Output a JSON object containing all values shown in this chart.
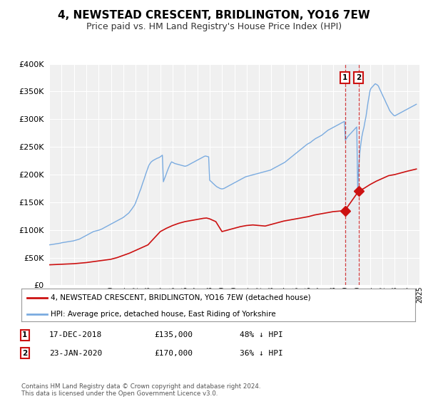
{
  "title": "4, NEWSTEAD CRESCENT, BRIDLINGTON, YO16 7EW",
  "subtitle": "Price paid vs. HM Land Registry's House Price Index (HPI)",
  "title_fontsize": 11,
  "subtitle_fontsize": 9,
  "background_color": "#ffffff",
  "plot_bg_color": "#f0f0f0",
  "grid_color": "#ffffff",
  "hpi_color": "#7aabe0",
  "price_color": "#cc1111",
  "sale1_date_num": 2018.96,
  "sale2_date_num": 2020.07,
  "sale1_price": 135000,
  "sale2_price": 170000,
  "ylim_max": 400000,
  "ylim_min": 0,
  "xlim_min": 1995,
  "xlim_max": 2025,
  "legend_label_price": "4, NEWSTEAD CRESCENT, BRIDLINGTON, YO16 7EW (detached house)",
  "legend_label_hpi": "HPI: Average price, detached house, East Riding of Yorkshire",
  "table_row1": [
    "1",
    "17-DEC-2018",
    "£135,000",
    "48% ↓ HPI"
  ],
  "table_row2": [
    "2",
    "23-JAN-2020",
    "£170,000",
    "36% ↓ HPI"
  ],
  "footer": "Contains HM Land Registry data © Crown copyright and database right 2024.\nThis data is licensed under the Open Government Licence v3.0.",
  "hpi_x": [
    1995.0,
    1995.08,
    1995.17,
    1995.25,
    1995.33,
    1995.42,
    1995.5,
    1995.58,
    1995.67,
    1995.75,
    1995.83,
    1995.92,
    1996.0,
    1996.08,
    1996.17,
    1996.25,
    1996.33,
    1996.42,
    1996.5,
    1996.58,
    1996.67,
    1996.75,
    1996.83,
    1996.92,
    1997.0,
    1997.08,
    1997.17,
    1997.25,
    1997.33,
    1997.42,
    1997.5,
    1997.58,
    1997.67,
    1997.75,
    1997.83,
    1997.92,
    1998.0,
    1998.08,
    1998.17,
    1998.25,
    1998.33,
    1998.42,
    1998.5,
    1998.58,
    1998.67,
    1998.75,
    1998.83,
    1998.92,
    1999.0,
    1999.08,
    1999.17,
    1999.25,
    1999.33,
    1999.42,
    1999.5,
    1999.58,
    1999.67,
    1999.75,
    1999.83,
    1999.92,
    2000.0,
    2000.08,
    2000.17,
    2000.25,
    2000.33,
    2000.42,
    2000.5,
    2000.58,
    2000.67,
    2000.75,
    2000.83,
    2000.92,
    2001.0,
    2001.08,
    2001.17,
    2001.25,
    2001.33,
    2001.42,
    2001.5,
    2001.58,
    2001.67,
    2001.75,
    2001.83,
    2001.92,
    2002.0,
    2002.08,
    2002.17,
    2002.25,
    2002.33,
    2002.42,
    2002.5,
    2002.58,
    2002.67,
    2002.75,
    2002.83,
    2002.92,
    2003.0,
    2003.08,
    2003.17,
    2003.25,
    2003.33,
    2003.42,
    2003.5,
    2003.58,
    2003.67,
    2003.75,
    2003.83,
    2003.92,
    2004.0,
    2004.08,
    2004.17,
    2004.25,
    2004.33,
    2004.42,
    2004.5,
    2004.58,
    2004.67,
    2004.75,
    2004.83,
    2004.92,
    2005.0,
    2005.08,
    2005.17,
    2005.25,
    2005.33,
    2005.42,
    2005.5,
    2005.58,
    2005.67,
    2005.75,
    2005.83,
    2005.92,
    2006.0,
    2006.08,
    2006.17,
    2006.25,
    2006.33,
    2006.42,
    2006.5,
    2006.58,
    2006.67,
    2006.75,
    2006.83,
    2006.92,
    2007.0,
    2007.08,
    2007.17,
    2007.25,
    2007.33,
    2007.42,
    2007.5,
    2007.58,
    2007.67,
    2007.75,
    2007.83,
    2007.92,
    2008.0,
    2008.08,
    2008.17,
    2008.25,
    2008.33,
    2008.42,
    2008.5,
    2008.58,
    2008.67,
    2008.75,
    2008.83,
    2008.92,
    2009.0,
    2009.08,
    2009.17,
    2009.25,
    2009.33,
    2009.42,
    2009.5,
    2009.58,
    2009.67,
    2009.75,
    2009.83,
    2009.92,
    2010.0,
    2010.08,
    2010.17,
    2010.25,
    2010.33,
    2010.42,
    2010.5,
    2010.58,
    2010.67,
    2010.75,
    2010.83,
    2010.92,
    2011.0,
    2011.08,
    2011.17,
    2011.25,
    2011.33,
    2011.42,
    2011.5,
    2011.58,
    2011.67,
    2011.75,
    2011.83,
    2011.92,
    2012.0,
    2012.08,
    2012.17,
    2012.25,
    2012.33,
    2012.42,
    2012.5,
    2012.58,
    2012.67,
    2012.75,
    2012.83,
    2012.92,
    2013.0,
    2013.08,
    2013.17,
    2013.25,
    2013.33,
    2013.42,
    2013.5,
    2013.58,
    2013.67,
    2013.75,
    2013.83,
    2013.92,
    2014.0,
    2014.08,
    2014.17,
    2014.25,
    2014.33,
    2014.42,
    2014.5,
    2014.58,
    2014.67,
    2014.75,
    2014.83,
    2014.92,
    2015.0,
    2015.08,
    2015.17,
    2015.25,
    2015.33,
    2015.42,
    2015.5,
    2015.58,
    2015.67,
    2015.75,
    2015.83,
    2015.92,
    2016.0,
    2016.08,
    2016.17,
    2016.25,
    2016.33,
    2016.42,
    2016.5,
    2016.58,
    2016.67,
    2016.75,
    2016.83,
    2016.92,
    2017.0,
    2017.08,
    2017.17,
    2017.25,
    2017.33,
    2017.42,
    2017.5,
    2017.58,
    2017.67,
    2017.75,
    2017.83,
    2017.92,
    2018.0,
    2018.08,
    2018.17,
    2018.25,
    2018.33,
    2018.42,
    2018.5,
    2018.58,
    2018.67,
    2018.75,
    2018.83,
    2018.92,
    2019.0,
    2019.08,
    2019.17,
    2019.25,
    2019.33,
    2019.42,
    2019.5,
    2019.58,
    2019.67,
    2019.75,
    2019.83,
    2019.92,
    2020.0,
    2020.08,
    2020.17,
    2020.25,
    2020.33,
    2020.42,
    2020.5,
    2020.58,
    2020.67,
    2020.75,
    2020.83,
    2020.92,
    2021.0,
    2021.08,
    2021.17,
    2021.25,
    2021.33,
    2021.42,
    2021.5,
    2021.58,
    2021.67,
    2021.75,
    2021.83,
    2021.92,
    2022.0,
    2022.08,
    2022.17,
    2022.25,
    2022.33,
    2022.42,
    2022.5,
    2022.58,
    2022.67,
    2022.75,
    2022.83,
    2022.92,
    2023.0,
    2023.08,
    2023.17,
    2023.25,
    2023.33,
    2023.42,
    2023.5,
    2023.58,
    2023.67,
    2023.75,
    2023.83,
    2023.92,
    2024.0,
    2024.08,
    2024.17,
    2024.25,
    2024.33,
    2024.42,
    2024.5,
    2024.58,
    2024.67,
    2024.75
  ],
  "hpi_y": [
    73000,
    73200,
    73500,
    73800,
    74100,
    74400,
    74700,
    75000,
    75300,
    75600,
    75900,
    76200,
    76800,
    77100,
    77400,
    77700,
    78000,
    78300,
    78600,
    78900,
    79200,
    79500,
    79800,
    80000,
    80500,
    81000,
    81500,
    82000,
    82500,
    83200,
    84000,
    85000,
    86000,
    87000,
    88000,
    89000,
    90000,
    91000,
    92000,
    93000,
    94000,
    95000,
    96000,
    97000,
    97500,
    98000,
    98500,
    99000,
    99500,
    100000,
    100800,
    101500,
    102500,
    103500,
    104500,
    105500,
    106500,
    107500,
    108500,
    109500,
    110500,
    111500,
    112500,
    113500,
    114500,
    115500,
    116500,
    117500,
    118500,
    119500,
    120500,
    121500,
    122500,
    124000,
    125500,
    127000,
    128500,
    130000,
    132000,
    134500,
    137000,
    139500,
    142000,
    145000,
    149000,
    154000,
    159000,
    164000,
    169000,
    174000,
    179500,
    185000,
    190500,
    196000,
    201500,
    207000,
    212000,
    217000,
    220000,
    222500,
    224000,
    225500,
    226500,
    227500,
    228500,
    229500,
    230000,
    231000,
    232000,
    233500,
    235000,
    187000,
    192000,
    197000,
    202000,
    207000,
    212000,
    216000,
    220000,
    223000,
    222000,
    221000,
    220000,
    219500,
    219000,
    218500,
    218000,
    217500,
    217000,
    216500,
    216000,
    215500,
    215000,
    215500,
    216000,
    217000,
    218000,
    219000,
    220000,
    221000,
    222000,
    223000,
    224000,
    225000,
    226000,
    227000,
    228000,
    229000,
    230000,
    231000,
    232000,
    233000,
    233500,
    233000,
    232500,
    232000,
    190000,
    188000,
    186500,
    184500,
    183000,
    181000,
    179500,
    178000,
    177000,
    176000,
    175000,
    174500,
    174000,
    174500,
    175000,
    176000,
    177000,
    178000,
    179000,
    180000,
    181000,
    182000,
    183000,
    184000,
    185000,
    186000,
    187000,
    188000,
    189000,
    190000,
    191000,
    192000,
    193000,
    194000,
    195000,
    196000,
    196500,
    197000,
    197500,
    198000,
    198500,
    199000,
    199500,
    200000,
    200500,
    201000,
    201500,
    202000,
    202500,
    203000,
    203500,
    204000,
    204500,
    205000,
    205500,
    206000,
    206500,
    207000,
    207500,
    208000,
    209000,
    210000,
    211000,
    212000,
    213000,
    214000,
    215000,
    216000,
    217000,
    218000,
    219000,
    220000,
    221000,
    222000,
    223500,
    225000,
    226500,
    228000,
    229500,
    231000,
    232500,
    234000,
    235500,
    237000,
    238500,
    240000,
    241500,
    243000,
    244500,
    246000,
    247500,
    249000,
    250500,
    252000,
    253500,
    255000,
    256000,
    257000,
    258000,
    259500,
    261000,
    262500,
    264000,
    265000,
    266000,
    267000,
    268000,
    269000,
    270000,
    271000,
    272500,
    274000,
    275500,
    277000,
    278500,
    280000,
    281000,
    282000,
    283000,
    284000,
    285000,
    286000,
    287000,
    288000,
    289000,
    290000,
    291000,
    292000,
    293000,
    294000,
    295000,
    296000,
    262000,
    265000,
    268000,
    270000,
    272000,
    274000,
    276000,
    278000,
    280000,
    282000,
    284000,
    286000,
    170000,
    215000,
    240000,
    255000,
    268000,
    278000,
    285000,
    295000,
    305000,
    318000,
    330000,
    342000,
    352000,
    356000,
    358000,
    360000,
    362000,
    364000,
    363000,
    362000,
    360000,
    356000,
    352000,
    348000,
    344000,
    340000,
    336000,
    332000,
    328000,
    324000,
    320000,
    316000,
    313000,
    311000,
    309000,
    307000,
    306000,
    307000,
    308000,
    309000,
    310000,
    311000,
    312000,
    313000,
    314000,
    315000,
    316000,
    317000,
    318000,
    319000,
    320000,
    321000,
    322000,
    323000,
    324000,
    325000,
    326000,
    327000,
    328000,
    329000
  ],
  "price_x": [
    1995.0,
    1995.5,
    1996.0,
    1996.5,
    1997.0,
    1997.5,
    1998.0,
    1998.5,
    1999.0,
    1999.5,
    2000.0,
    2000.5,
    2001.0,
    2001.5,
    2002.0,
    2002.5,
    2003.0,
    2003.5,
    2004.0,
    2004.5,
    2005.0,
    2005.5,
    2006.0,
    2006.5,
    2007.0,
    2007.5,
    2007.75,
    2008.0,
    2008.5,
    2009.0,
    2009.5,
    2010.0,
    2010.5,
    2011.0,
    2011.5,
    2012.0,
    2012.5,
    2013.0,
    2013.5,
    2014.0,
    2014.5,
    2015.0,
    2015.5,
    2016.0,
    2016.5,
    2017.0,
    2017.5,
    2018.0,
    2018.5,
    2018.96,
    2018.96,
    2020.07,
    2020.5,
    2021.0,
    2021.5,
    2022.0,
    2022.5,
    2023.0,
    2023.5,
    2024.0,
    2024.75
  ],
  "price_y": [
    37000,
    37500,
    38000,
    38500,
    39000,
    40000,
    41000,
    42500,
    44000,
    45500,
    47000,
    50000,
    54000,
    58000,
    63000,
    68000,
    73000,
    85000,
    97000,
    103000,
    108000,
    112000,
    115000,
    117000,
    119000,
    121000,
    121500,
    120000,
    115000,
    97000,
    100000,
    103000,
    106000,
    108000,
    109000,
    108000,
    107000,
    110000,
    113000,
    116000,
    118000,
    120000,
    122000,
    124000,
    127000,
    129000,
    131000,
    133000,
    134000,
    135000,
    135000,
    170000,
    175000,
    182000,
    188000,
    193000,
    198000,
    200000,
    203000,
    206000,
    210000
  ]
}
